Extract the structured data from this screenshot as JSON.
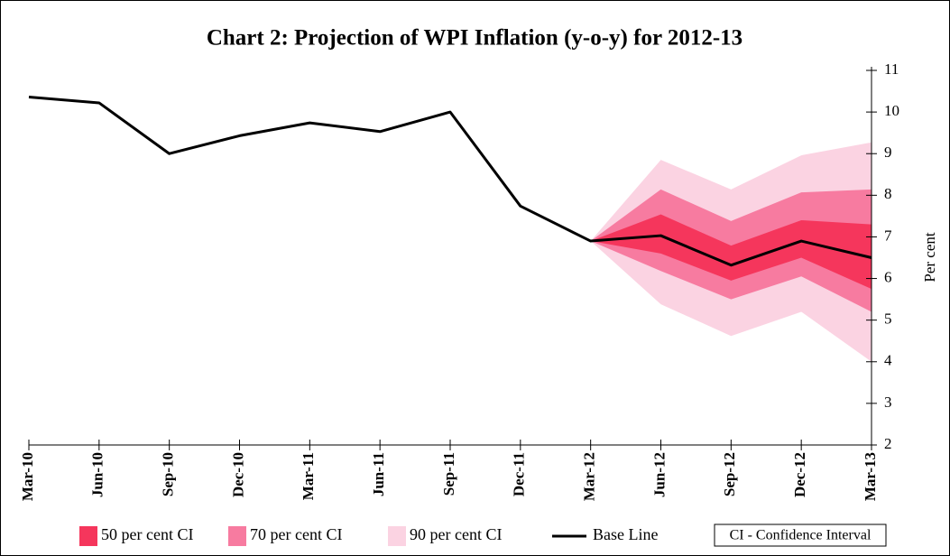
{
  "chart_data": {
    "type": "fan",
    "title": "Chart 2: Projection of WPI Inflation (y-o-y) for 2012-13",
    "y_label": "Per cent",
    "note": "CI - Confidence Interval",
    "categories": [
      "Mar-10",
      "Jun-10",
      "Sep-10",
      "Dec-10",
      "Mar-11",
      "Jun-11",
      "Sep-11",
      "Dec-11",
      "Mar-12",
      "Jun-12",
      "Sep-12",
      "Dec-12",
      "Mar-13"
    ],
    "ylim": [
      2,
      11
    ],
    "yticks": [
      2,
      3,
      4,
      5,
      6,
      7,
      8,
      9,
      10,
      11
    ],
    "bands": [
      {
        "name": "90 per cent CI",
        "color": "#fbd3e2",
        "lower": [
          null,
          null,
          null,
          null,
          null,
          null,
          null,
          null,
          6.9,
          5.38,
          4.62,
          5.2,
          4.0
        ],
        "upper": [
          null,
          null,
          null,
          null,
          null,
          null,
          null,
          null,
          6.9,
          8.85,
          8.14,
          8.96,
          9.27
        ]
      },
      {
        "name": "70 per cent CI",
        "color": "#f77ba0",
        "lower": [
          null,
          null,
          null,
          null,
          null,
          null,
          null,
          null,
          6.9,
          6.18,
          5.5,
          6.05,
          5.2
        ],
        "upper": [
          null,
          null,
          null,
          null,
          null,
          null,
          null,
          null,
          6.9,
          8.14,
          7.38,
          8.07,
          8.14
        ]
      },
      {
        "name": "50 per cent CI",
        "color": "#f5365c",
        "lower": [
          null,
          null,
          null,
          null,
          null,
          null,
          null,
          null,
          6.9,
          6.6,
          5.95,
          6.5,
          5.75
        ],
        "upper": [
          null,
          null,
          null,
          null,
          null,
          null,
          null,
          null,
          6.9,
          7.54,
          6.79,
          7.4,
          7.3
        ]
      }
    ],
    "series": [
      {
        "name": "Base Line",
        "color": "#000000",
        "values": [
          10.36,
          10.22,
          9.0,
          9.43,
          9.74,
          9.53,
          10.0,
          7.74,
          6.9,
          7.03,
          6.32,
          6.9,
          6.5
        ]
      }
    ]
  }
}
